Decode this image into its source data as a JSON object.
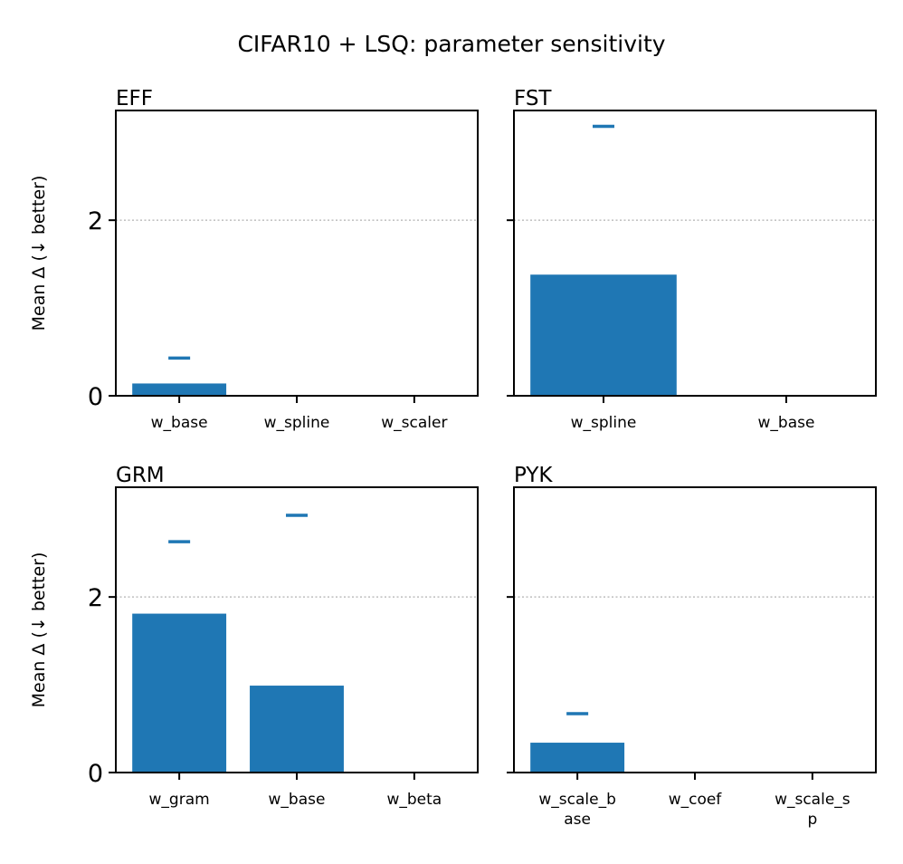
{
  "title": "CIFAR10 + LSQ: parameter sensitivity",
  "colors": {
    "bar": "#1f77b4",
    "marker": "#1f77b4",
    "ref_line": "#b0b0b0"
  },
  "chart_data": [
    {
      "type": "bar",
      "title": "EFF",
      "ylabel": "Mean Δ (↓ better)",
      "ylim": [
        0,
        3.25
      ],
      "yticks": [
        "0",
        "2"
      ],
      "reference_line": 2,
      "categories": [
        "w_base",
        "w_spline",
        "w_scaler"
      ],
      "category_lines": [
        [
          "w_base"
        ],
        [
          "w_spline"
        ],
        [
          "w_scaler"
        ]
      ],
      "values": [
        0.14,
        0.0,
        0.0
      ],
      "markers": [
        0.43,
        null,
        null
      ]
    },
    {
      "type": "bar",
      "title": "FST",
      "ylabel": "",
      "ylim": [
        0,
        3.25
      ],
      "yticks": [],
      "reference_line": 2,
      "categories": [
        "w_spline",
        "w_base"
      ],
      "category_lines": [
        [
          "w_spline"
        ],
        [
          "w_base"
        ]
      ],
      "values": [
        1.38,
        0.0
      ],
      "markers": [
        3.07,
        null
      ]
    },
    {
      "type": "bar",
      "title": "GRM",
      "ylabel": "Mean Δ (↓ better)",
      "ylim": [
        0,
        3.25
      ],
      "yticks": [
        "0",
        "2"
      ],
      "reference_line": 2,
      "categories": [
        "w_gram",
        "w_base",
        "w_beta"
      ],
      "category_lines": [
        [
          "w_gram"
        ],
        [
          "w_base"
        ],
        [
          "w_beta"
        ]
      ],
      "values": [
        1.81,
        0.99,
        0.0
      ],
      "markers": [
        2.63,
        2.93,
        null
      ]
    },
    {
      "type": "bar",
      "title": "PYK",
      "ylabel": "",
      "ylim": [
        0,
        3.25
      ],
      "yticks": [],
      "reference_line": 2,
      "categories": [
        "w_scale_base",
        "w_coef",
        "w_scale_sp"
      ],
      "category_lines": [
        [
          "w_scale_b",
          "ase"
        ],
        [
          "w_coef"
        ],
        [
          "w_scale_s",
          "p"
        ]
      ],
      "values": [
        0.34,
        0.0,
        0.0
      ],
      "markers": [
        0.67,
        null,
        null
      ]
    }
  ]
}
